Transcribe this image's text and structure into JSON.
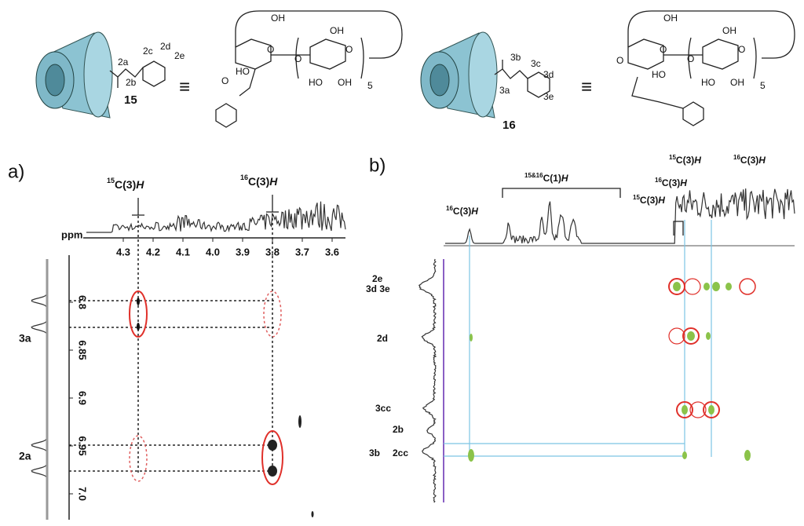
{
  "scheme": {
    "compound15": {
      "labels": [
        "2a",
        "2b",
        "2c",
        "2d",
        "2e"
      ],
      "number": "15"
    },
    "compound16": {
      "labels": [
        "3a",
        "3b",
        "3c",
        "3d",
        "3e"
      ],
      "number": "16"
    },
    "equiv": [
      "≡",
      "≡"
    ],
    "structure15": {
      "labels": [
        "OH",
        "OH",
        "O",
        "O",
        "HO",
        "O",
        "O",
        "HO",
        "OH",
        "5"
      ]
    },
    "structure16": {
      "labels": [
        "OH",
        "OH",
        "O",
        "O",
        "HO",
        "O",
        "O",
        "HO",
        "OH",
        "5"
      ]
    }
  },
  "panel_a": {
    "label": "a)",
    "axis_unit": "ppm",
    "x_ticks": [
      "4.3",
      "4.2",
      "4.1",
      "4.0",
      "3.9",
      "3.8",
      "3.7",
      "3.6"
    ],
    "y_ticks": [
      "6.8",
      "6.85",
      "6.9",
      "6.95",
      "7.0"
    ],
    "peaks": [
      {
        "sup": "15",
        "name": "C(3)",
        "atom": "H"
      },
      {
        "sup": "16",
        "name": "C(3)",
        "atom": "H"
      }
    ],
    "rows": [
      "3a",
      "2a"
    ]
  },
  "panel_b": {
    "label": "b)",
    "peaks": [
      {
        "sup": "16",
        "name": "C(3)",
        "atom": "H"
      },
      {
        "sup": "15&16",
        "name": "C(1)",
        "atom": "H"
      },
      {
        "sup": "15",
        "name": "C(3)",
        "atom": "H"
      },
      {
        "sup": "16",
        "name": "C(3)",
        "atom": "H"
      },
      {
        "sup": "15",
        "name": "C(3)",
        "atom": "H"
      },
      {
        "sup": "16",
        "name": "C(3)",
        "atom": "H"
      }
    ],
    "rows": [
      "2e",
      "3d 3e",
      "2d",
      "3cc",
      "2b",
      "3b",
      "2cc"
    ]
  }
}
